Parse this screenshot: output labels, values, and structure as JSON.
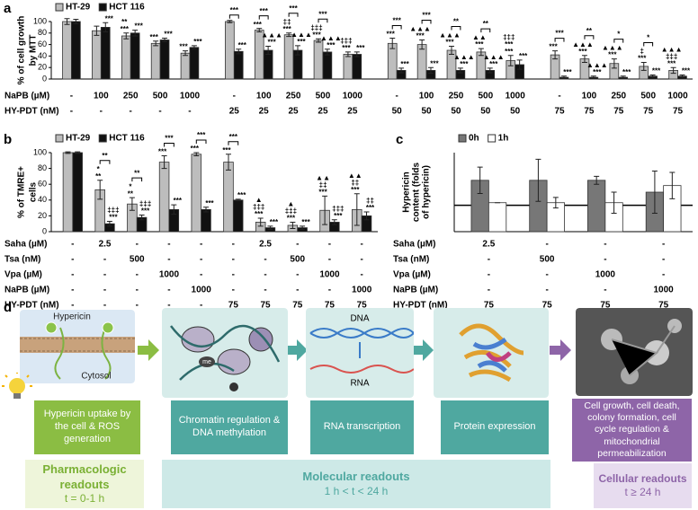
{
  "chart_data": [
    {
      "type": "bar",
      "panel": "a",
      "ylabel": [
        "% of cell growth",
        "by MTT"
      ],
      "ylim": [
        0,
        100
      ],
      "yticks": [
        0,
        20,
        40,
        60,
        80,
        100
      ],
      "rows": [
        {
          "name": "NaPB (µM)",
          "labels": [
            "-",
            "100",
            "250",
            "500",
            "1000",
            "-",
            "100",
            "250",
            "500",
            "1000",
            "-",
            "100",
            "250",
            "500",
            "1000",
            "-",
            "100",
            "250",
            "500",
            "1000"
          ]
        },
        {
          "name": "HY-PDT (nM)",
          "labels": [
            "-",
            "-",
            "-",
            "-",
            "-",
            "25",
            "25",
            "25",
            "25",
            "25",
            "50",
            "50",
            "50",
            "50",
            "50",
            "75",
            "75",
            "75",
            "75",
            "75"
          ]
        }
      ],
      "series": [
        {
          "name": "HT-29",
          "color": "#bdbdbd",
          "values": [
            100,
            84,
            75,
            62,
            45,
            100,
            85,
            77,
            67,
            43,
            62,
            60,
            50,
            47,
            32,
            42,
            35,
            27,
            22,
            15
          ],
          "errors": [
            5,
            8,
            5,
            4,
            4,
            2,
            3,
            3,
            3,
            4,
            9,
            8,
            7,
            6,
            9,
            7,
            6,
            8,
            7,
            5
          ],
          "annotations": [
            null,
            null,
            [
              "**",
              "***"
            ],
            [
              "***"
            ],
            [
              "***"
            ],
            null,
            [
              "***"
            ],
            [
              "‡‡",
              "***"
            ],
            [
              "‡‡‡",
              "***"
            ],
            [
              "‡‡‡",
              "***"
            ],
            [
              "***"
            ],
            [
              "▲▲▲",
              "***"
            ],
            [
              "▲▲▲",
              "***"
            ],
            [
              "▲▲",
              "***"
            ],
            [
              "‡‡‡",
              "***",
              "***"
            ],
            [
              "***"
            ],
            [
              "▲▲▲",
              "***"
            ],
            [
              "▲▲▲",
              "***"
            ],
            [
              "‡",
              "***"
            ],
            [
              "▲▲▲",
              "‡‡‡",
              "***"
            ]
          ]
        },
        {
          "name": "HCT 116",
          "color": "#111111",
          "values": [
            100,
            90,
            80,
            68,
            55,
            48,
            50,
            50,
            47,
            43,
            15,
            15,
            15,
            15,
            25,
            3,
            3,
            3,
            5,
            5
          ],
          "errors": [
            4,
            8,
            5,
            3,
            3,
            4,
            7,
            8,
            5,
            4,
            4,
            5,
            4,
            4,
            8,
            2,
            2,
            2,
            2,
            2
          ],
          "annotations": [
            null,
            [
              "***"
            ],
            [
              "***"
            ],
            [
              "***"
            ],
            [
              "***"
            ],
            [
              "***"
            ],
            [
              "▲▲▲",
              "***"
            ],
            [
              "▲▲▲",
              "***"
            ],
            [
              "▲▲▲",
              "***"
            ],
            [
              "***"
            ],
            [
              "***"
            ],
            [
              "***"
            ],
            [
              "▲▲▲",
              "***"
            ],
            [
              "▲▲▲",
              "***"
            ],
            [
              "***"
            ],
            [
              "***"
            ],
            [
              "▲▲▲",
              "***"
            ],
            [
              "***"
            ],
            [
              "***"
            ],
            [
              "***"
            ]
          ]
        }
      ],
      "bracket_labels": [
        null,
        null,
        null,
        null,
        null,
        "***",
        "***",
        "***",
        "***",
        null,
        "***",
        "***",
        "**",
        "**",
        null,
        "***",
        "**",
        "*",
        "*",
        null
      ]
    },
    {
      "type": "bar",
      "panel": "b",
      "ylabel": [
        "% of TMRE+",
        "cells"
      ],
      "ylim": [
        0,
        100
      ],
      "yticks": [
        0,
        20,
        40,
        60,
        80,
        100
      ],
      "rows": [
        {
          "name": "Saha (µM)",
          "labels": [
            "-",
            "2.5",
            "-",
            "-",
            "-",
            "-",
            "2.5",
            "-",
            "-",
            "-"
          ]
        },
        {
          "name": "Tsa (nM)",
          "labels": [
            "-",
            "-",
            "500",
            "-",
            "-",
            "-",
            "-",
            "500",
            "-",
            "-"
          ]
        },
        {
          "name": "Vpa (µM)",
          "labels": [
            "-",
            "-",
            "-",
            "1000",
            "-",
            "-",
            "-",
            "-",
            "1000",
            "-"
          ]
        },
        {
          "name": "NaPB (µM)",
          "labels": [
            "-",
            "-",
            "-",
            "-",
            "1000",
            "-",
            "-",
            "-",
            "-",
            "1000"
          ]
        },
        {
          "name": "HY-PDT (nM)",
          "labels": [
            "-",
            "-",
            "-",
            "-",
            "-",
            "75",
            "75",
            "75",
            "75",
            "75"
          ]
        }
      ],
      "series": [
        {
          "name": "HT-29",
          "color": "#bdbdbd",
          "values": [
            100,
            53,
            35,
            88,
            98,
            88,
            12,
            8,
            27,
            28
          ],
          "errors": [
            1,
            12,
            8,
            8,
            2,
            10,
            5,
            4,
            18,
            20
          ],
          "annotations": [
            null,
            [
              "*",
              "**"
            ],
            [
              "*",
              "**"
            ],
            [
              "***"
            ],
            [
              "***"
            ],
            [
              "***"
            ],
            [
              "▲",
              "‡‡‡",
              "***"
            ],
            [
              "▲",
              "‡‡‡",
              "***"
            ],
            [
              "▲▲",
              "‡‡",
              "***"
            ],
            [
              "▲▲",
              "‡‡",
              "***"
            ]
          ]
        },
        {
          "name": "HCT 116",
          "color": "#111111",
          "values": [
            100,
            10,
            18,
            28,
            28,
            40,
            5,
            5,
            12,
            20
          ],
          "errors": [
            1,
            3,
            3,
            6,
            3,
            1,
            2,
            2,
            3,
            5
          ],
          "annotations": [
            null,
            [
              "‡‡‡",
              "***"
            ],
            [
              "‡‡‡",
              "***"
            ],
            [
              "***"
            ],
            [
              "***"
            ],
            [
              "***"
            ],
            [
              "***"
            ],
            [
              "***"
            ],
            [
              "‡‡‡",
              "***"
            ],
            [
              "‡‡",
              "***"
            ]
          ]
        }
      ],
      "bracket_labels": [
        null,
        "**",
        "**",
        "***",
        "***",
        "***",
        null,
        null,
        null,
        null
      ]
    },
    {
      "type": "bar",
      "panel": "c",
      "ylabel": [
        "Hypericin",
        "content (folds",
        "of hypericin)"
      ],
      "ylim": [
        0,
        3
      ],
      "hline": 1,
      "rows": [
        {
          "name": "Saha (µM)",
          "labels": [
            "2.5",
            "-",
            "-",
            "-"
          ]
        },
        {
          "name": "Tsa (nM)",
          "labels": [
            "-",
            "500",
            "-",
            "-"
          ]
        },
        {
          "name": "Vpa (µM)",
          "labels": [
            "-",
            "-",
            "1000",
            "-"
          ]
        },
        {
          "name": "NaPB (µM)",
          "labels": [
            "-",
            "-",
            "-",
            "1000"
          ]
        },
        {
          "name": "HY-PDT (nM)",
          "labels": [
            "75",
            "75",
            "75",
            "75"
          ]
        }
      ],
      "series": [
        {
          "name": "0h",
          "color": "#777777",
          "values": [
            1.95,
            1.95,
            1.95,
            1.5
          ],
          "errors": [
            0.5,
            0.8,
            0.15,
            0.8
          ]
        },
        {
          "name": "1h",
          "color": "#ffffff",
          "values": [
            1.1,
            1.1,
            1.1,
            1.75
          ],
          "errors": [
            0,
            0.2,
            0.4,
            0.5
          ]
        }
      ]
    }
  ],
  "diagram": {
    "panel": "d",
    "labels": {
      "hypericin": "Hypericin",
      "cytosol": "Cytosol",
      "me": "me",
      "dna": "DNA",
      "rna": "RNA"
    },
    "steps": [
      "Hypericin uptake by the cell & ROS generation",
      "Chromatin regulation & DNA methylation",
      "RNA transcription",
      "Protein expression",
      "Cell growth, cell death, colony formation, cell cycle regulation & mitochondrial permeabilization"
    ],
    "readouts": [
      {
        "title": "Pharmacologic readouts",
        "time": "t = 0-1 h"
      },
      {
        "title": "Molecular readouts",
        "time": "1 h < t < 24 h"
      },
      {
        "title": "Cellular readouts",
        "time": "t ≥ 24 h"
      }
    ]
  }
}
